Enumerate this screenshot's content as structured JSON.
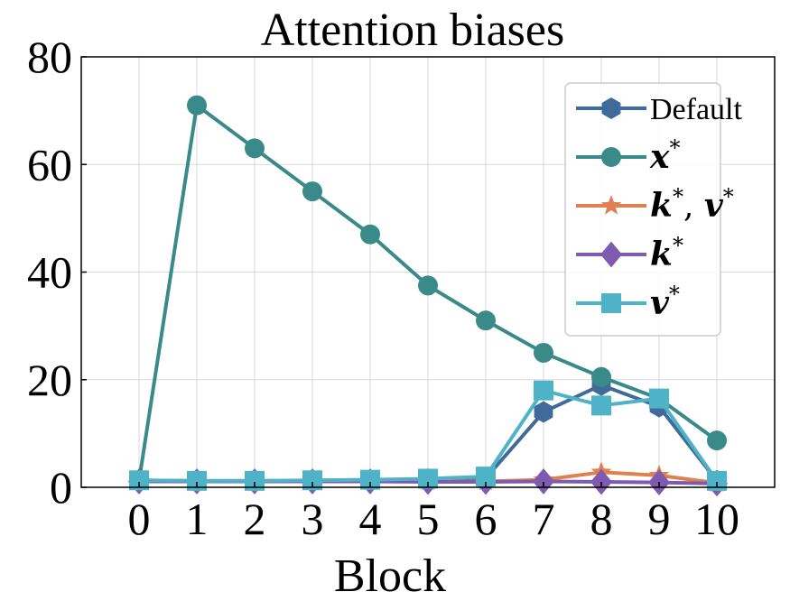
{
  "chart_data": {
    "type": "line",
    "title": "Attention biases",
    "xlabel": "Block",
    "ylabel": "",
    "x": [
      0,
      1,
      2,
      3,
      4,
      5,
      6,
      7,
      8,
      9,
      10
    ],
    "xlim": [
      -1,
      11
    ],
    "ylim": [
      0,
      80
    ],
    "yticks": [
      0,
      20,
      40,
      60,
      80
    ],
    "grid": true,
    "legend_position": "top-right",
    "series": [
      {
        "name": "Default",
        "label_math": false,
        "color": "#3f6a99",
        "marker": "hexagon",
        "values": [
          1.3,
          1.2,
          1.2,
          1.2,
          1.3,
          1.5,
          1.7,
          14,
          19,
          15,
          1.2
        ]
      },
      {
        "name": "x",
        "label_math": true,
        "sup": "*",
        "color": "#3a8a8a",
        "marker": "circle",
        "values": [
          1.2,
          71,
          63,
          55,
          47,
          37.5,
          31,
          25,
          20.5,
          16.5,
          8.7
        ]
      },
      {
        "name": "k",
        "name2": "v",
        "label_math": true,
        "sup": "*",
        "color": "#e08050",
        "marker": "star",
        "values": [
          1.1,
          1.1,
          1.1,
          1.1,
          1.1,
          1.1,
          1.1,
          1.4,
          2.8,
          2.2,
          0.8
        ]
      },
      {
        "name": "k",
        "label_math": true,
        "sup": "*",
        "color": "#7e5bb0",
        "marker": "diamond",
        "values": [
          1.1,
          1.1,
          1.1,
          1.1,
          1.1,
          1.0,
          1.0,
          1.1,
          1.0,
          0.9,
          0.7
        ]
      },
      {
        "name": "v",
        "label_math": true,
        "sup": "*",
        "color": "#4fb3c8",
        "marker": "square",
        "values": [
          1.3,
          1.2,
          1.2,
          1.3,
          1.4,
          1.6,
          2.0,
          18,
          15.2,
          16.5,
          1.2
        ]
      }
    ]
  }
}
